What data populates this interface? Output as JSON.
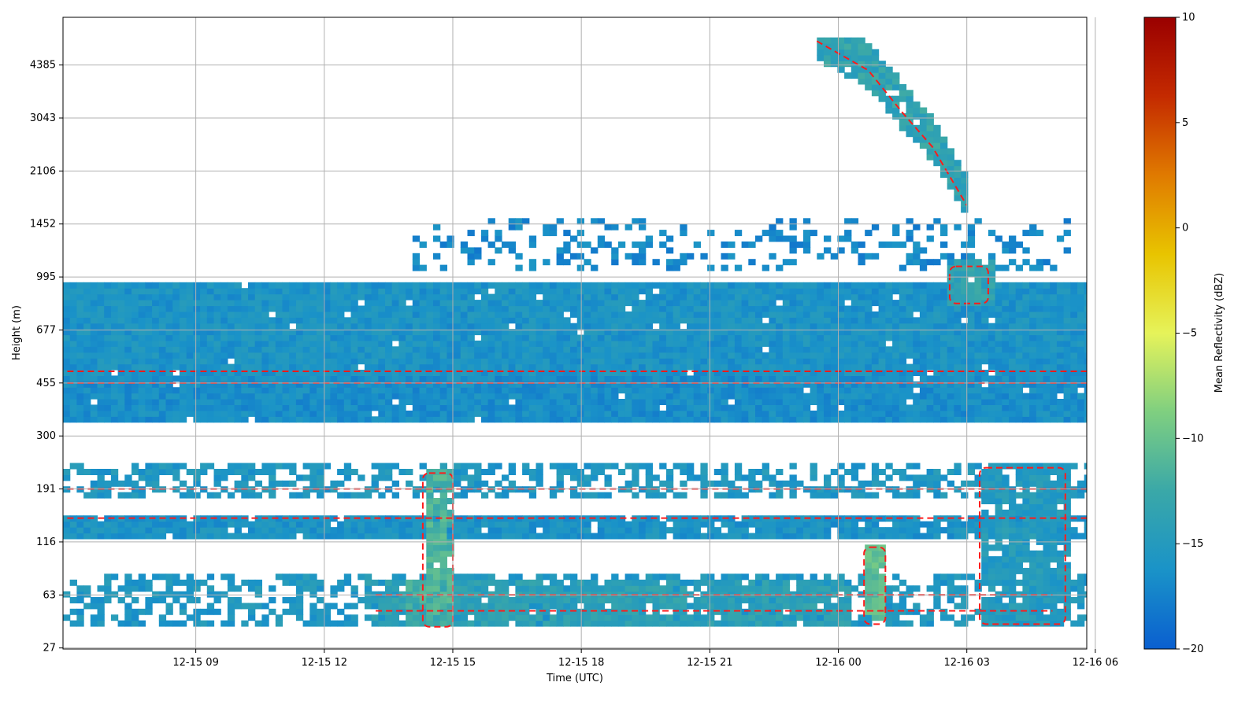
{
  "chart_data": {
    "type": "heatmap",
    "title": "",
    "xlabel": "Time (UTC)",
    "ylabel": "Height (m)",
    "x_ticks": [
      "12-15 09",
      "12-15 12",
      "12-15 15",
      "12-15 18",
      "12-15 21",
      "12-16 00",
      "12-16 03",
      "12-16 06"
    ],
    "x_tick_hours": [
      9,
      12,
      15,
      18,
      21,
      24,
      27,
      30
    ],
    "xlim_hours": [
      5.9,
      29.8
    ],
    "y_ticks": [
      "27",
      "63",
      "116",
      "191",
      "300",
      "455",
      "677",
      "995",
      "1452",
      "2106",
      "3043",
      "4385"
    ],
    "y_tick_values": [
      27,
      63,
      116,
      191,
      300,
      455,
      677,
      995,
      1452,
      2106,
      3043,
      4385
    ],
    "ylim_index": [
      -0.02,
      11.9
    ],
    "grid": true,
    "colorbar": {
      "label": "Mean Reflectivity (dBZ)",
      "ticks": [
        "10",
        "5",
        "0",
        "−5",
        "−10",
        "−15",
        "−20"
      ],
      "tick_values": [
        10,
        5,
        0,
        -5,
        -10,
        -15,
        -20
      ],
      "range": [
        -20,
        10
      ],
      "colormap": [
        "#0a5fd0",
        "#1a93c8",
        "#3aa8a8",
        "#7fcf80",
        "#e6f35a",
        "#e8c400",
        "#e07a00",
        "#c42a00",
        "#9a0000"
      ]
    },
    "contour": {
      "color": "#ff1a1a",
      "style": "dashed"
    },
    "regions": [
      {
        "t0": 5.9,
        "t1": 29.8,
        "h0": 4.18,
        "h1": 5.1,
        "dbz": -16.5,
        "density": 0.98
      },
      {
        "t0": 5.9,
        "t1": 29.8,
        "h0": 5.1,
        "h1": 6.85,
        "dbz": -16,
        "density": 0.98
      },
      {
        "t0": 5.9,
        "t1": 29.8,
        "h0": 2.75,
        "h1": 3.45,
        "dbz": -15.5,
        "density": 0.55
      },
      {
        "t0": 5.9,
        "t1": 29.8,
        "h0": 2.05,
        "h1": 2.45,
        "dbz": -16,
        "density": 0.93
      },
      {
        "t0": 5.9,
        "t1": 29.8,
        "h0": 0.35,
        "h1": 1.3,
        "dbz": -15.5,
        "density": 0.55
      },
      {
        "t0": 12.8,
        "t1": 24.2,
        "h0": 0.4,
        "h1": 1.25,
        "dbz": -14,
        "density": 0.8
      },
      {
        "t0": 14.3,
        "t1": 15.0,
        "h0": 0.4,
        "h1": 3.3,
        "dbz": -11.5,
        "density": 0.9
      },
      {
        "t0": 13.8,
        "t1": 14.3,
        "h0": 0.4,
        "h1": 1.2,
        "dbz": -12,
        "density": 0.9
      },
      {
        "t0": 24.6,
        "t1": 25.1,
        "h0": 0.45,
        "h1": 1.9,
        "dbz": -10.5,
        "density": 0.95
      },
      {
        "t0": 27.3,
        "t1": 29.3,
        "h0": 0.4,
        "h1": 3.4,
        "dbz": -15,
        "density": 0.85
      },
      {
        "t0": 14.0,
        "t1": 29.3,
        "h0": 7.05,
        "h1": 8.1,
        "dbz": -17,
        "density": 0.25
      },
      {
        "t0": 26.5,
        "t1": 27.6,
        "h0": 6.4,
        "h1": 7.3,
        "dbz": -13.5,
        "density": 0.9
      }
    ],
    "cloud_band": {
      "points": [
        [
          23.5,
          11.45
        ],
        [
          24.7,
          10.9
        ],
        [
          25.5,
          10.1
        ],
        [
          26.2,
          9.45
        ],
        [
          27.0,
          8.35
        ]
      ],
      "half_width": 0.42,
      "dbz": -13.5
    }
  }
}
